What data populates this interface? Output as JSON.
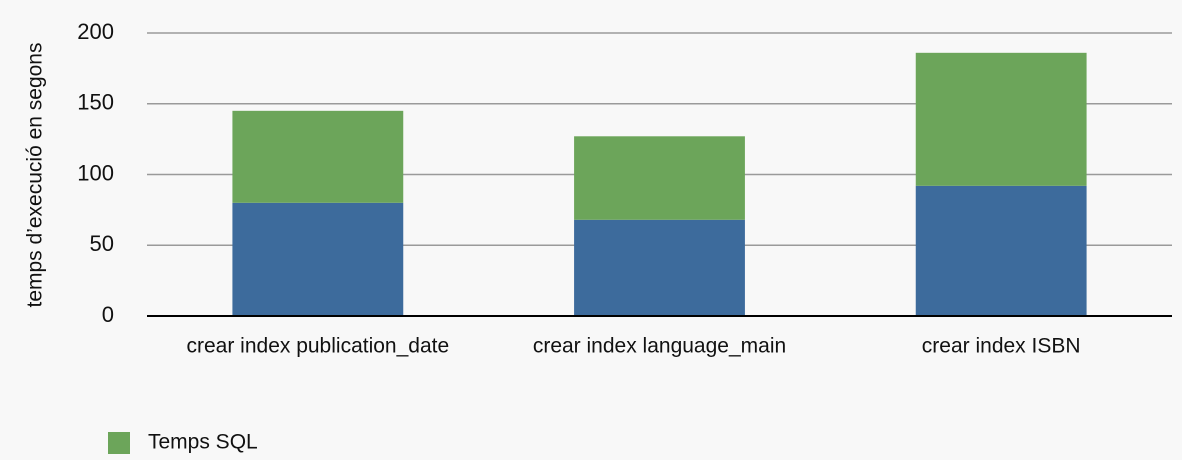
{
  "chart_data": {
    "type": "stacked_bar",
    "y_axis_label": "temps d’execució en segons",
    "categories": [
      "crear index publication_date",
      "crear index language_main",
      "crear index ISBN"
    ],
    "series": [
      {
        "color": "#3d6b9c",
        "values": [
          80,
          68,
          92
        ]
      },
      {
        "name": "Temps SQL",
        "color": "#6ca55a",
        "values": [
          65,
          59,
          94
        ]
      }
    ],
    "ylim": [
      0,
      200
    ],
    "yticks": [
      0,
      50,
      100,
      150,
      200
    ],
    "grid": true,
    "legend": "bottom-left"
  }
}
